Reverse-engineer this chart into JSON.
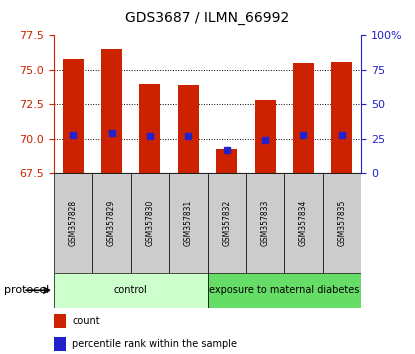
{
  "title": "GDS3687 / ILMN_66992",
  "samples": [
    "GSM357828",
    "GSM357829",
    "GSM357830",
    "GSM357831",
    "GSM357832",
    "GSM357833",
    "GSM357834",
    "GSM357835"
  ],
  "red_values": [
    75.8,
    76.5,
    74.0,
    73.9,
    69.3,
    72.8,
    75.5,
    75.6
  ],
  "blue_values": [
    70.3,
    70.4,
    70.2,
    70.2,
    69.2,
    69.9,
    70.3,
    70.3
  ],
  "ylim_left": [
    67.5,
    77.5
  ],
  "ylim_right": [
    0,
    100
  ],
  "yticks_left": [
    67.5,
    70.0,
    72.5,
    75.0,
    77.5
  ],
  "yticks_right": [
    0,
    25,
    50,
    75,
    100
  ],
  "ytick_labels_right": [
    "0",
    "25",
    "50",
    "75",
    "100%"
  ],
  "bar_bottom": 67.5,
  "bar_width": 0.55,
  "red_color": "#cc2200",
  "blue_color": "#2222cc",
  "grid_yticks": [
    70.0,
    72.5,
    75.0
  ],
  "protocol_groups": [
    {
      "label": "control",
      "start": 0,
      "end": 3,
      "color": "#ccffcc"
    },
    {
      "label": "exposure to maternal diabetes",
      "start": 4,
      "end": 7,
      "color": "#66dd66"
    }
  ],
  "protocol_label": "protocol",
  "legend_items": [
    {
      "color": "#cc2200",
      "label": "count"
    },
    {
      "color": "#2222cc",
      "label": "percentile rank within the sample"
    }
  ],
  "sample_box_color": "#cccccc",
  "tick_color_left": "#cc2200",
  "tick_color_right": "#2222cc"
}
